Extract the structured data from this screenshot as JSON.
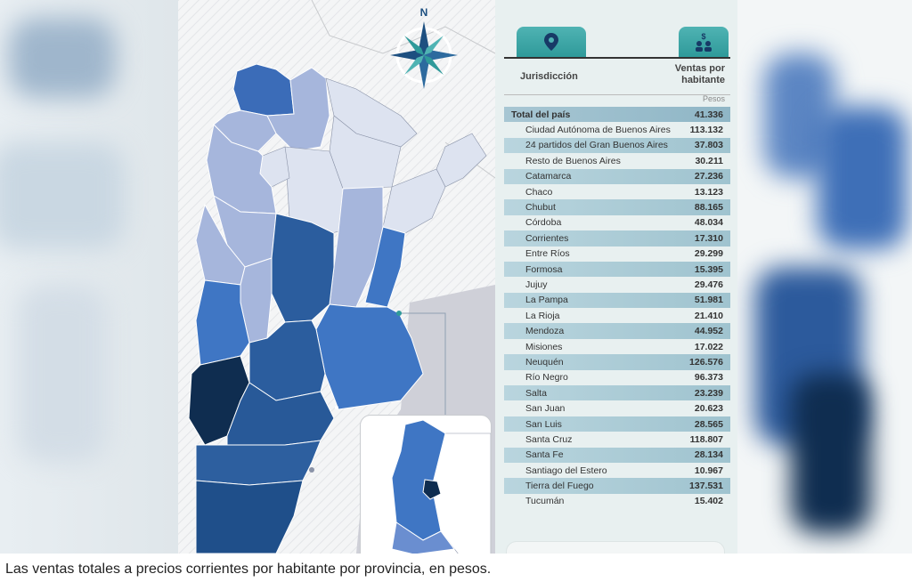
{
  "compass": {
    "label": "N"
  },
  "table": {
    "header_jurisdiction": "Jurisdicción",
    "header_value": "Ventas por habitante",
    "units": "Pesos",
    "rows": [
      {
        "name": "Total del país",
        "value": "41.336"
      },
      {
        "name": "Ciudad Autónoma de Buenos Aires",
        "value": "113.132"
      },
      {
        "name": "24 partidos del Gran Buenos Aires",
        "value": "37.803"
      },
      {
        "name": "Resto de Buenos Aires",
        "value": "30.211"
      },
      {
        "name": "Catamarca",
        "value": "27.236"
      },
      {
        "name": "Chaco",
        "value": "13.123"
      },
      {
        "name": "Chubut",
        "value": "88.165"
      },
      {
        "name": "Córdoba",
        "value": "48.034"
      },
      {
        "name": "Corrientes",
        "value": "17.310"
      },
      {
        "name": "Entre Ríos",
        "value": "29.299"
      },
      {
        "name": "Formosa",
        "value": "15.395"
      },
      {
        "name": "Jujuy",
        "value": "29.476"
      },
      {
        "name": "La Pampa",
        "value": "51.981"
      },
      {
        "name": "La Rioja",
        "value": "21.410"
      },
      {
        "name": "Mendoza",
        "value": "44.952"
      },
      {
        "name": "Misiones",
        "value": "17.022"
      },
      {
        "name": "Neuquén",
        "value": "126.576"
      },
      {
        "name": "Río Negro",
        "value": "96.373"
      },
      {
        "name": "Salta",
        "value": "23.239"
      },
      {
        "name": "San Juan",
        "value": "20.623"
      },
      {
        "name": "San Luis",
        "value": "28.565"
      },
      {
        "name": "Santa Cruz",
        "value": "118.807"
      },
      {
        "name": "Santa Fe",
        "value": "28.134"
      },
      {
        "name": "Santiago del Estero",
        "value": "10.967"
      },
      {
        "name": "Tierra del Fuego",
        "value": "137.531"
      },
      {
        "name": "Tucumán",
        "value": "15.402"
      }
    ]
  },
  "tabs": [
    {
      "icon": "map-pin-icon"
    },
    {
      "icon": "money-people-icon"
    }
  ],
  "colors": {
    "tab": "#2f9a9a",
    "very_light": "#dfe5f2",
    "light": "#a9b8de",
    "mid": "#6a8ed0",
    "medium": "#3a6fbe",
    "dark": "#24558f",
    "darkest": "#0d2a4a"
  },
  "caption": "Las ventas totales a precios corrientes por habitante por provincia, en pesos."
}
